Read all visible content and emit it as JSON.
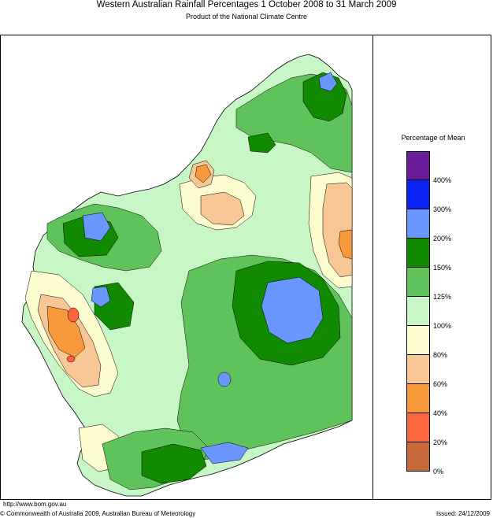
{
  "title": "Western Australian Rainfall Percentages 1 October 2008 to 31 March 2009",
  "subtitle": "Product of the National Climate Centre",
  "legend": {
    "title": "Percentage of Mean",
    "colors": [
      "#6a1b9a",
      "#0b22f5",
      "#6a97ff",
      "#118a00",
      "#5fc25a",
      "#c9f6c6",
      "#fdfbd0",
      "#f9c796",
      "#f89a3c",
      "#fb663f",
      "#c96a3d"
    ],
    "labels": [
      "400%",
      "300%",
      "200%",
      "150%",
      "125%",
      "100%",
      "80%",
      "60%",
      "40%",
      "20%",
      "0%"
    ]
  },
  "footer": {
    "url": "http://www.bom.gov.au",
    "copyright": "© Commonwealth of Australia 2009, Australian Bureau of Meteorology",
    "issued": "Issued: 24/12/2009"
  }
}
